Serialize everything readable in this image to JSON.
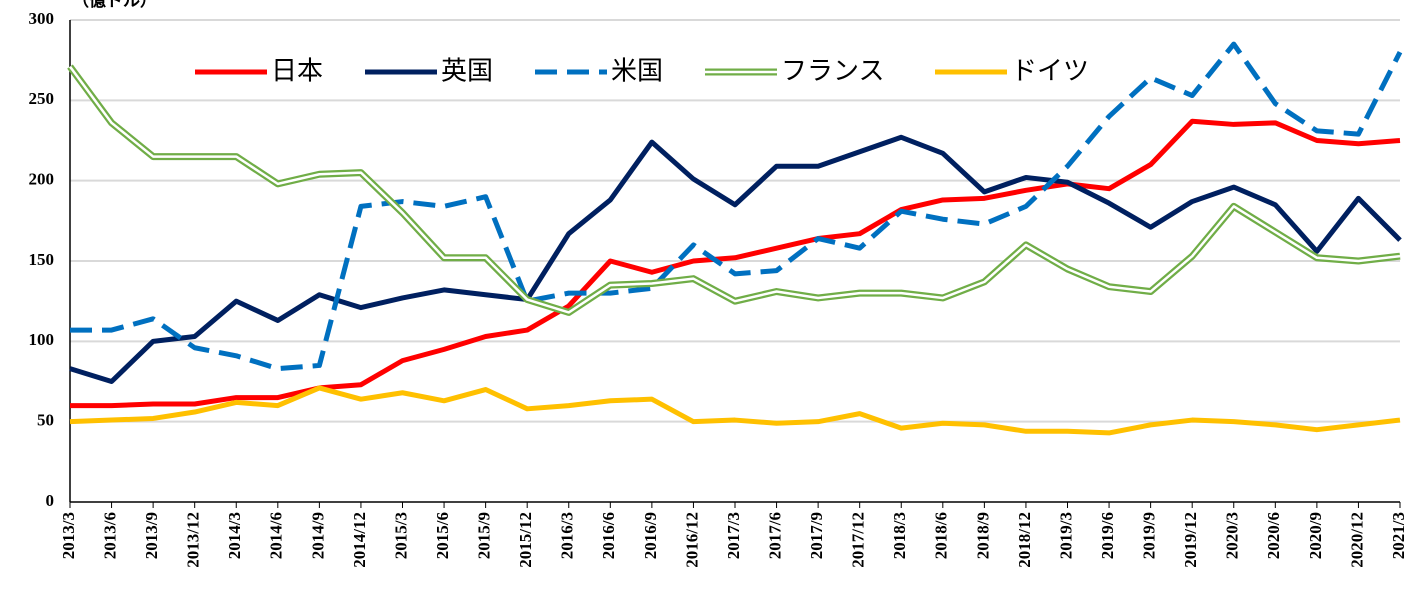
{
  "chart_data": {
    "type": "line",
    "y_axis_label": "（億ドル）",
    "categories": [
      "2013/3",
      "2013/6",
      "2013/9",
      "2013/12",
      "2014/3",
      "2014/6",
      "2014/9",
      "2014/12",
      "2015/3",
      "2015/6",
      "2015/9",
      "2015/12",
      "2016/3",
      "2016/6",
      "2016/9",
      "2016/12",
      "2017/3",
      "2017/6",
      "2017/9",
      "2017/12",
      "2018/3",
      "2018/6",
      "2018/9",
      "2018/12",
      "2019/3",
      "2019/6",
      "2019/9",
      "2019/12",
      "2020/3",
      "2020/6",
      "2020/9",
      "2020/12",
      "2021/3"
    ],
    "series": [
      {
        "name": "日本",
        "color": "#ff0000",
        "style": "solid",
        "values": [
          60,
          60,
          61,
          61,
          65,
          65,
          71,
          73,
          88,
          95,
          103,
          107,
          122,
          150,
          143,
          150,
          152,
          158,
          164,
          167,
          182,
          188,
          189,
          194,
          198,
          195,
          210,
          237,
          235,
          236,
          225,
          223,
          225
        ]
      },
      {
        "name": "英国",
        "color": "#002060",
        "style": "solid",
        "values": [
          83,
          75,
          100,
          103,
          125,
          113,
          129,
          121,
          127,
          132,
          129,
          126,
          167,
          188,
          224,
          201,
          185,
          209,
          209,
          218,
          227,
          217,
          193,
          202,
          199,
          186,
          171,
          187,
          196,
          185,
          156,
          189,
          163
        ]
      },
      {
        "name": "米国",
        "color": "#0070c0",
        "style": "dashed",
        "values": [
          107,
          107,
          114,
          96,
          91,
          83,
          85,
          184,
          187,
          184,
          190,
          125,
          130,
          130,
          133,
          160,
          142,
          144,
          164,
          158,
          181,
          176,
          173,
          184,
          209,
          240,
          264,
          253,
          285,
          248,
          231,
          229,
          280
        ]
      },
      {
        "name": "フランス",
        "color": "#70ad47",
        "style": "double",
        "values": [
          271,
          236,
          215,
          215,
          215,
          198,
          204,
          205,
          180,
          152,
          152,
          126,
          118,
          135,
          136,
          139,
          125,
          131,
          127,
          130,
          130,
          127,
          137,
          160,
          145,
          134,
          131,
          153,
          184,
          168,
          152,
          150,
          153
        ]
      },
      {
        "name": "ドイツ",
        "color": "#ffc000",
        "style": "solid",
        "values": [
          50,
          51,
          52,
          56,
          62,
          60,
          71,
          64,
          68,
          63,
          70,
          58,
          60,
          63,
          64,
          50,
          51,
          49,
          50,
          55,
          46,
          49,
          48,
          44,
          44,
          43,
          48,
          51,
          50,
          48,
          45,
          48,
          51
        ]
      }
    ],
    "ylim": [
      0,
      300
    ],
    "yticks": [
      0,
      50,
      100,
      150,
      200,
      250,
      300
    ],
    "grid": true,
    "legend": "top"
  }
}
